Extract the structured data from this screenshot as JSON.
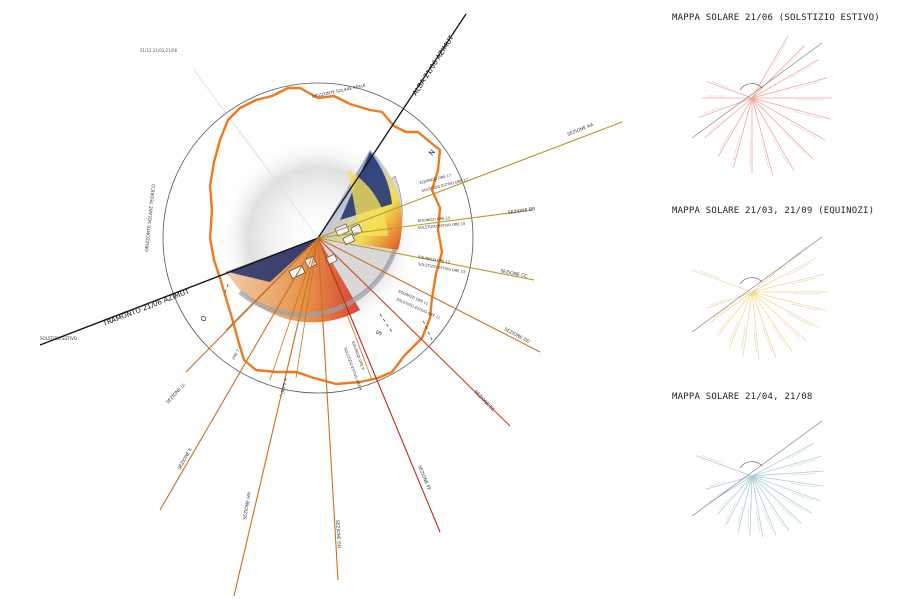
{
  "main_diagram": {
    "labels": {
      "dates_top": "21/12   21/03   21/06",
      "alba": "ALBA 21/06  AZIMUT",
      "tramonto": "TRAMONTO 21/06  AZIMUT",
      "orizzonte_reale": "ORIZZONTE SOLARE REALE",
      "orizzonte_teorico": "ORIZZONTE SOLARE TEORICO",
      "solstizio_estivo": "SOLSTIZIO ESTIVO",
      "north": "N",
      "east": "E",
      "west": "O",
      "south": "S"
    },
    "sections": [
      {
        "name": "SEZIONE AA"
      },
      {
        "name": "SEZIONE BB"
      },
      {
        "name": "SEZIONE CC"
      },
      {
        "name": "SEZIONE DD"
      },
      {
        "name": "SEZIONE EE"
      },
      {
        "name": "SEZIONE FF"
      },
      {
        "name": "SEZIONE GG"
      },
      {
        "name": "SEZIONE HH"
      },
      {
        "name": "SEZIONE II"
      },
      {
        "name": "SEZIONE LL"
      }
    ],
    "hour_labels": [
      "EQUINOZI  ORE 17",
      "SOLSTIZIO ESTIVO ORE 17",
      "EQUINOZI  ORE 15",
      "SOLSTIZIO ESTIVO ORE 15",
      "EQUINOZI  ORE 13",
      "SOLSTIZIO ESTIVO ORE 13",
      "EQUINOZI  ORE 11",
      "SOLSTIZIO ESTIVO ORE 11",
      "EQUINOZI ORE 9",
      "SOLSTIZIO ESTIVO ORE 9",
      "ORE 7",
      "ORE 5"
    ],
    "colors": {
      "horizon": "#f07a1e",
      "ray_gold": "#b8992e",
      "ray_orange": "#c9701f",
      "ray_red": "#b8281c",
      "shadow_blue": "#1c2f6e",
      "circle": "#555555"
    }
  },
  "maps": [
    {
      "title": "MAPPA SOLARE 21/06 (SOLSTIZIO ESTIVO)",
      "color": "#f0a89a"
    },
    {
      "title": "MAPPA SOLARE 21/03, 21/09 (EQUINOZI)",
      "color": "#f2d890"
    },
    {
      "title": "MAPPA SOLARE 21/04, 21/08",
      "color": "#a9cfd6"
    }
  ]
}
